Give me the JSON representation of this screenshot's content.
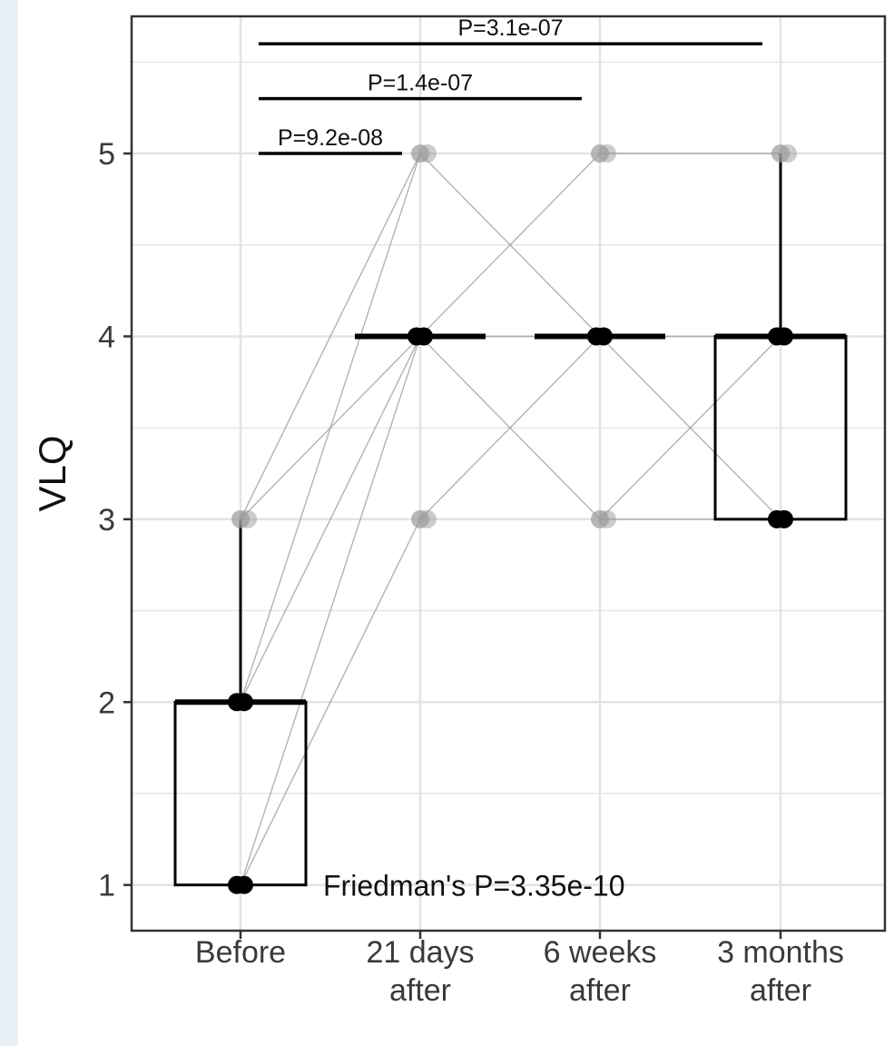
{
  "chart_data": {
    "type": "box",
    "ylabel": "VLQ",
    "xlabel": "",
    "categories": [
      [
        "Before"
      ],
      [
        "21 days",
        "after"
      ],
      [
        "6 weeks",
        "after"
      ],
      [
        "3 months",
        "after"
      ]
    ],
    "ylim": [
      0.75,
      5.75
    ],
    "yticks": [
      1,
      2,
      3,
      4,
      5
    ],
    "grid": true,
    "boxes": [
      {
        "q1": 1,
        "median": 2,
        "q3": 2,
        "whisker_low": 1,
        "whisker_high": 3
      },
      {
        "q1": 4,
        "median": 4,
        "q3": 4,
        "whisker_low": 4,
        "whisker_high": 4
      },
      {
        "q1": 4,
        "median": 4,
        "q3": 4,
        "whisker_low": 4,
        "whisker_high": 4
      },
      {
        "q1": 3,
        "median": 4,
        "q3": 4,
        "whisker_low": 3,
        "whisker_high": 5
      }
    ],
    "points": [
      {
        "group": 0,
        "value": 1
      },
      {
        "group": 0,
        "value": 2
      },
      {
        "group": 0,
        "value": 3
      },
      {
        "group": 1,
        "value": 3
      },
      {
        "group": 1,
        "value": 4
      },
      {
        "group": 1,
        "value": 5
      },
      {
        "group": 2,
        "value": 3
      },
      {
        "group": 2,
        "value": 4
      },
      {
        "group": 2,
        "value": 5
      },
      {
        "group": 3,
        "value": 3
      },
      {
        "group": 3,
        "value": 4
      },
      {
        "group": 3,
        "value": 5
      }
    ],
    "paired_lines": [
      {
        "from_group": 0,
        "from": 1,
        "to_group": 1,
        "to": 4
      },
      {
        "from_group": 0,
        "from": 1,
        "to_group": 1,
        "to": 3
      },
      {
        "from_group": 0,
        "from": 2,
        "to_group": 1,
        "to": 4
      },
      {
        "from_group": 0,
        "from": 2,
        "to_group": 1,
        "to": 5
      },
      {
        "from_group": 0,
        "from": 3,
        "to_group": 1,
        "to": 4
      },
      {
        "from_group": 0,
        "from": 3,
        "to_group": 1,
        "to": 5
      },
      {
        "from_group": 1,
        "from": 4,
        "to_group": 2,
        "to": 5
      },
      {
        "from_group": 1,
        "from": 4,
        "to_group": 2,
        "to": 4
      },
      {
        "from_group": 1,
        "from": 4,
        "to_group": 2,
        "to": 3
      },
      {
        "from_group": 1,
        "from": 5,
        "to_group": 2,
        "to": 4
      },
      {
        "from_group": 1,
        "from": 3,
        "to_group": 2,
        "to": 4
      },
      {
        "from_group": 2,
        "from": 5,
        "to_group": 3,
        "to": 5
      },
      {
        "from_group": 2,
        "from": 4,
        "to_group": 3,
        "to": 4
      },
      {
        "from_group": 2,
        "from": 4,
        "to_group": 3,
        "to": 3
      },
      {
        "from_group": 2,
        "from": 3,
        "to_group": 3,
        "to": 3
      },
      {
        "from_group": 2,
        "from": 3,
        "to_group": 3,
        "to": 4
      }
    ],
    "comparisons": [
      {
        "from_group": 0,
        "to_group": 1,
        "label": "P=9.2e-08",
        "level": 5.0
      },
      {
        "from_group": 0,
        "to_group": 2,
        "label": "P=1.4e-07",
        "level": 5.3
      },
      {
        "from_group": 0,
        "to_group": 3,
        "label": "P=3.1e-07",
        "level": 5.6
      }
    ],
    "annotation": "Friedman's  P=3.35e-10",
    "colors": {
      "box": "#000000",
      "grid": "#e3e3e3",
      "panel_border": "#333333",
      "point": "#9a9a9a",
      "line": "#9a9a9a"
    }
  }
}
